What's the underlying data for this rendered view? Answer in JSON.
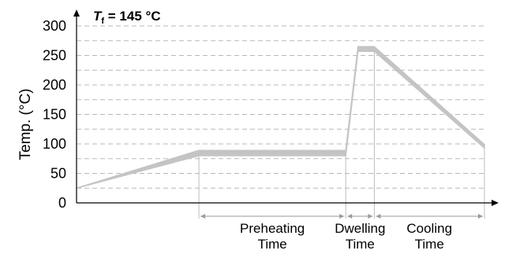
{
  "chart_data": {
    "type": "line",
    "ylabel": "Temp. (°C)",
    "xlabel": "",
    "ylim": [
      0,
      300
    ],
    "yticks": [
      0,
      50,
      100,
      150,
      200,
      250,
      300
    ],
    "grid": "horizontal dashed",
    "annotation": {
      "prefix": "T",
      "subscript": "f",
      "suffix": " = 145 °C"
    },
    "band_color": "#c4c4c4",
    "series": [
      {
        "x": [
          0,
          0.3,
          0.66,
          0.69,
          0.73,
          1.0
        ],
        "lower": [
          25,
          80,
          80,
          257,
          257,
          93
        ],
        "upper": [
          25,
          89,
          89,
          265,
          265,
          99
        ]
      }
    ],
    "phases": [
      {
        "label_lines": [
          "Preheating",
          "Time"
        ],
        "start": 0.3,
        "end": 0.66
      },
      {
        "label_lines": [
          "Dwelling",
          "Time"
        ],
        "start": 0.66,
        "end": 0.73
      },
      {
        "label_lines": [
          "Cooling",
          "Time"
        ],
        "start": 0.73,
        "end": 1.0
      }
    ]
  }
}
